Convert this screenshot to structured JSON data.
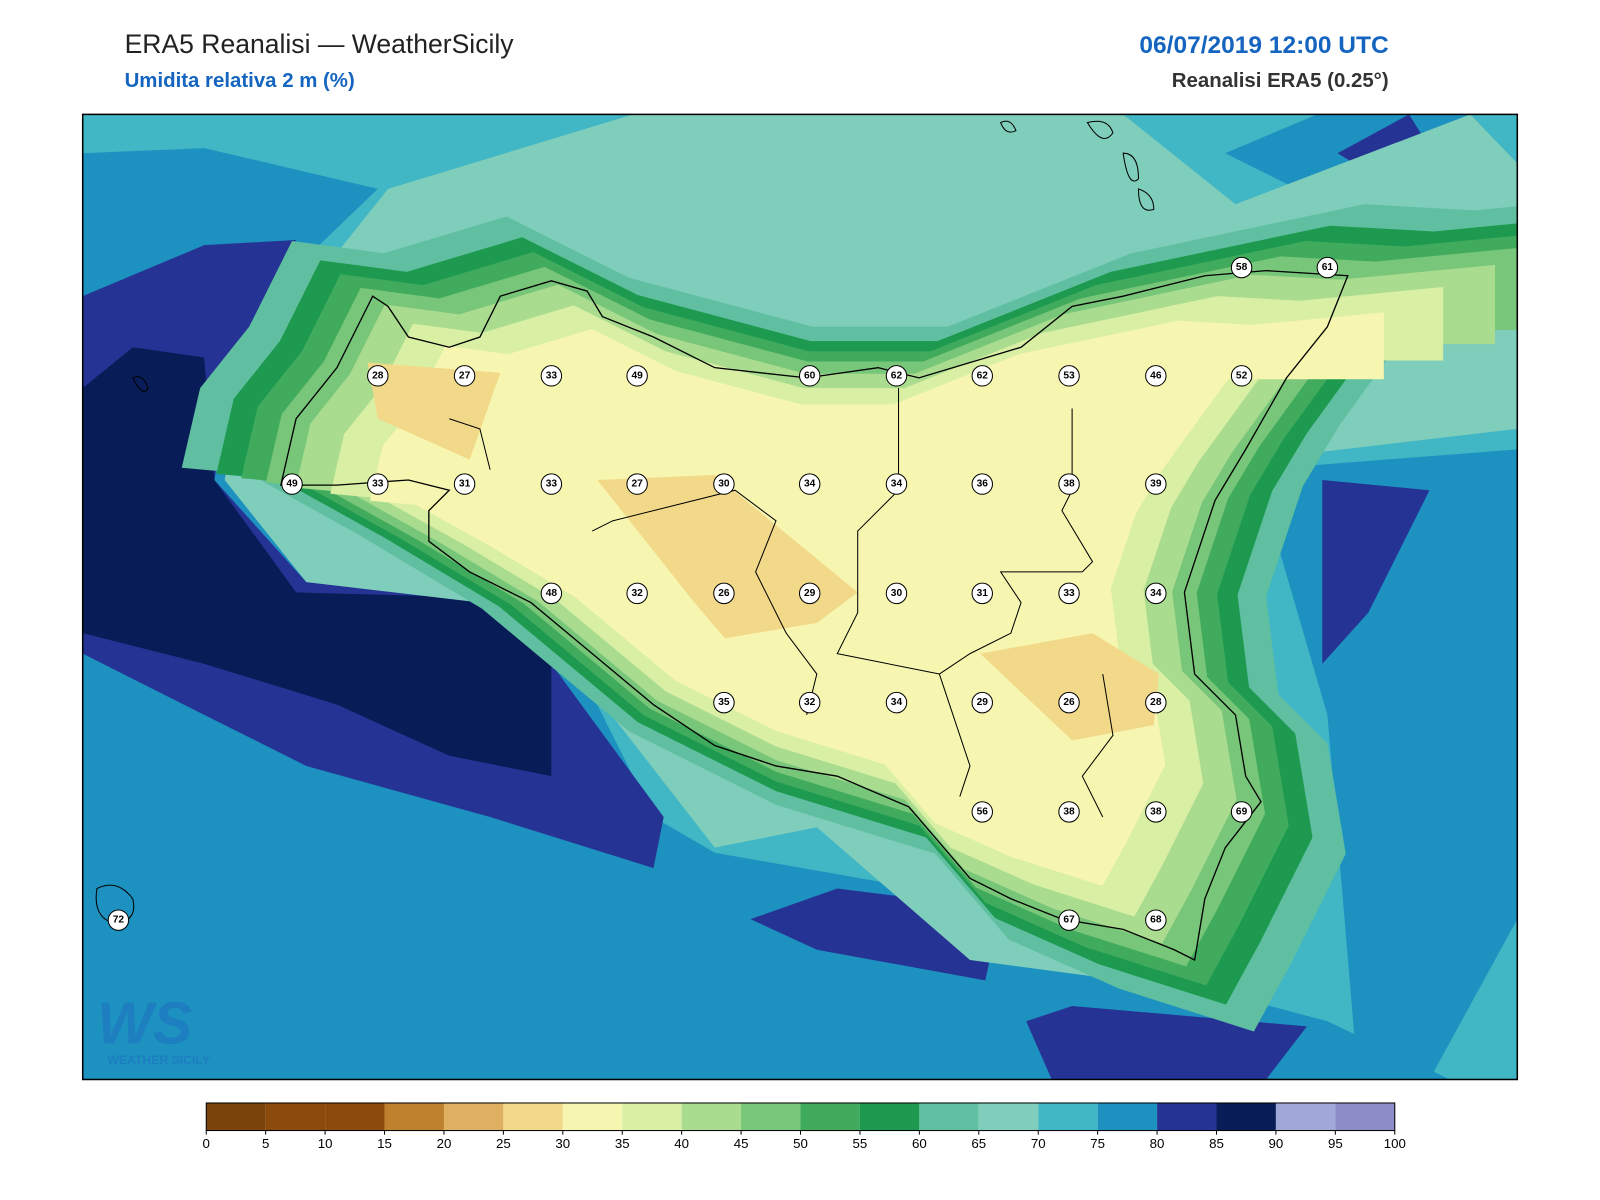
{
  "header": {
    "title": "ERA5 Reanalisi — WeatherSicily",
    "subtitle": "Umidita relativa 2 m (%)",
    "datetime": "06/07/2019 12:00 UTC",
    "source": "Reanalisi ERA5 (0.25°)"
  },
  "logo": {
    "mark": "WS",
    "text": "WEATHER SICILY"
  },
  "stations": {
    "values": [
      28,
      27,
      33,
      49,
      60,
      62,
      62,
      53,
      46,
      52,
      58,
      61,
      49,
      33,
      31,
      33,
      27,
      30,
      34,
      34,
      36,
      38,
      39,
      48,
      32,
      26,
      29,
      30,
      31,
      33,
      34,
      35,
      32,
      34,
      29,
      26,
      28,
      56,
      38,
      38,
      69,
      72,
      67,
      68
    ]
  },
  "colorbar": {
    "ticks": [
      0,
      5,
      10,
      15,
      20,
      25,
      30,
      35,
      40,
      45,
      50,
      55,
      60,
      65,
      70,
      75,
      80,
      85,
      90,
      95,
      100
    ],
    "colors": [
      "#7a4309",
      "#8c4a0c",
      "#8c4a0c",
      "#bf812d",
      "#dfb062",
      "#f2d98a",
      "#f6f6b0",
      "#d9efa4",
      "#a9dc8e",
      "#78c679",
      "#41ab5d",
      "#1d9a50",
      "#5fbfa0",
      "#7fcdbb",
      "#41b6c4",
      "#1d91c0",
      "#253494",
      "#081d58",
      "#a0a8d8",
      "#8c8cc8"
    ]
  }
}
